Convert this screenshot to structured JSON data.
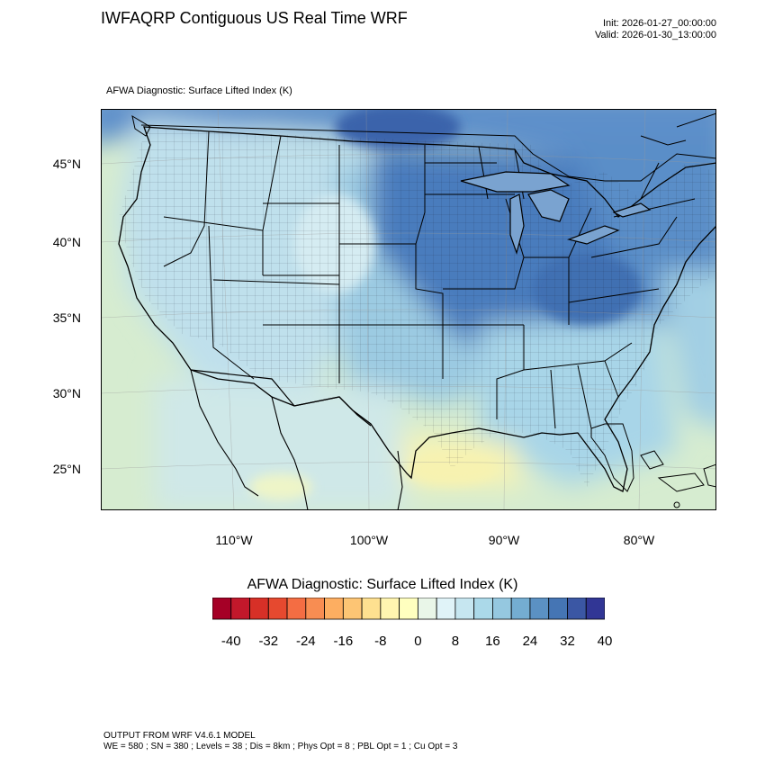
{
  "header": {
    "title": "IWFAQRP Contiguous US Real Time WRF",
    "init": "Init: 2026-01-27_00:00:00",
    "valid": "Valid: 2026-01-30_13:00:00"
  },
  "subtitle": "AFWA Diagnostic: Surface Lifted Index   (K)",
  "map": {
    "lat_labels": [
      "45°N",
      "40°N",
      "35°N",
      "30°N",
      "25°N"
    ],
    "lon_labels": [
      "110°W",
      "100°W",
      "90°W",
      "80°W"
    ],
    "colors": {
      "ocean": "#d6ecd0",
      "land_base": "#b6dbe8",
      "north_dark": "#4b7fbe",
      "midwest": "#3f72b4",
      "east": "#5a8ec8",
      "yellow": "#f6f3b4",
      "border": "#000000"
    }
  },
  "colorbar": {
    "title": "AFWA Diagnostic: Surface Lifted Index  (K)",
    "colors": [
      "#a50026",
      "#c2182b",
      "#d73027",
      "#e6492f",
      "#f46d43",
      "#f88d52",
      "#fdae61",
      "#fdc574",
      "#fee090",
      "#fff5b0",
      "#ffffbf",
      "#e9f6e8",
      "#e0f3f8",
      "#c6e6f0",
      "#abd9e9",
      "#95c8e0",
      "#74add1",
      "#5b91c3",
      "#4575b4",
      "#3b57a4",
      "#313695"
    ],
    "ticks": [
      "-40",
      "-32",
      "-24",
      "-16",
      "-8",
      "0",
      "8",
      "16",
      "24",
      "32",
      "40"
    ]
  },
  "footer": {
    "line1": "OUTPUT FROM WRF V4.6.1 MODEL",
    "line2": "WE = 580 ; SN = 380 ; Levels = 38 ; Dis = 8km ; Phys Opt = 8 ; PBL Opt = 1 ; Cu Opt = 3"
  }
}
